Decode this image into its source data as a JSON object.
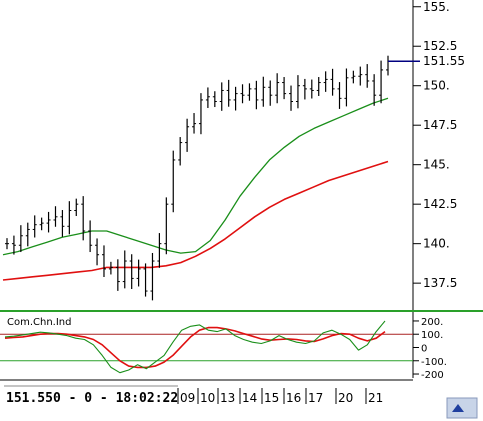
{
  "chart_data": [
    {
      "type": "candlestick",
      "ylim": [
        135.8,
        155.3
      ],
      "yticks": [
        137.5,
        140,
        142.5,
        145,
        147.5,
        150,
        152.5,
        155
      ],
      "ytick_labels": [
        "137.5",
        "140.",
        "142.5",
        "145.",
        "147.5",
        "150.",
        "152.5",
        "155."
      ],
      "last_price_label": "151.55",
      "last_price": 151.55,
      "colors": {
        "bars": "#000000",
        "ma_short": "#1a8f1a",
        "ma_long": "#e01010",
        "price_line": "#000080"
      },
      "series": [
        {
          "role": "ma_short",
          "values": [
            139.3,
            139.5,
            139.8,
            140.1,
            140.4,
            140.6,
            140.8,
            140.8,
            140.5,
            140.2,
            139.9,
            139.6,
            139.4,
            139.5,
            140.2,
            141.5,
            143.0,
            144.2,
            145.3,
            146.1,
            146.8,
            147.3,
            147.7,
            148.1,
            148.5,
            148.9,
            149.2
          ]
        },
        {
          "role": "ma_long",
          "values": [
            137.7,
            137.8,
            137.9,
            138.0,
            138.1,
            138.2,
            138.3,
            138.5,
            138.5,
            138.5,
            138.5,
            138.6,
            138.8,
            139.2,
            139.7,
            140.3,
            141.0,
            141.7,
            142.3,
            142.8,
            143.2,
            143.6,
            144.0,
            144.3,
            144.6,
            144.9,
            145.2
          ]
        },
        {
          "role": "price",
          "values": [
            140.0,
            139.9,
            140.5,
            140.9,
            141.2,
            141.3,
            141.5,
            141.7,
            141.1,
            142.1,
            142.5,
            140.8,
            139.9,
            139.3,
            138.4,
            138.5,
            137.6,
            138.9,
            137.8,
            138.4,
            137.0,
            138.9,
            140.0,
            142.5,
            145.3,
            146.4,
            147.4,
            147.6,
            149.1,
            149.3,
            149.0,
            149.7,
            149.1,
            149.5,
            149.4,
            149.8,
            149.1,
            149.9,
            149.4,
            150.2,
            149.5,
            149.0,
            150.0,
            149.8,
            149.7,
            150.2,
            150.4,
            149.8,
            149.2,
            150.5,
            150.6,
            150.7,
            150.3,
            149.4,
            151.0,
            151.55
          ]
        }
      ]
    },
    {
      "type": "line",
      "title": "Com.Chn.Ind",
      "ylim": [
        -230,
        260
      ],
      "yticks": [
        200,
        100,
        0,
        -100,
        -200
      ],
      "ytick_labels": [
        "200.",
        "100.",
        "0",
        "-100.",
        "-200"
      ],
      "reference_lines": [
        100,
        -100
      ],
      "colors": {
        "cci": "#1a8f1a",
        "signal": "#e01010",
        "reference": "#aa2222"
      },
      "series": [
        {
          "role": "cci",
          "values": [
            80,
            85,
            95,
            105,
            115,
            110,
            100,
            90,
            70,
            60,
            20,
            -60,
            -150,
            -190,
            -170,
            -130,
            -160,
            -110,
            -60,
            40,
            130,
            160,
            170,
            130,
            120,
            140,
            90,
            60,
            40,
            30,
            50,
            90,
            60,
            40,
            30,
            50,
            110,
            130,
            100,
            60,
            -20,
            20,
            120,
            200
          ]
        },
        {
          "role": "signal",
          "values": [
            70,
            75,
            80,
            90,
            100,
            105,
            105,
            100,
            90,
            80,
            60,
            20,
            -40,
            -100,
            -140,
            -150,
            -150,
            -140,
            -110,
            -60,
            10,
            80,
            130,
            150,
            150,
            140,
            125,
            105,
            85,
            65,
            55,
            60,
            65,
            60,
            50,
            45,
            65,
            90,
            105,
            100,
            70,
            50,
            70,
            120
          ]
        }
      ]
    }
  ],
  "status_bar": {
    "readout": "151.550 - 0 - 18:02:22"
  },
  "date_axis": {
    "labels": [
      "09",
      "10",
      "13",
      "14",
      "15",
      "16",
      "17",
      "20",
      "21"
    ]
  }
}
